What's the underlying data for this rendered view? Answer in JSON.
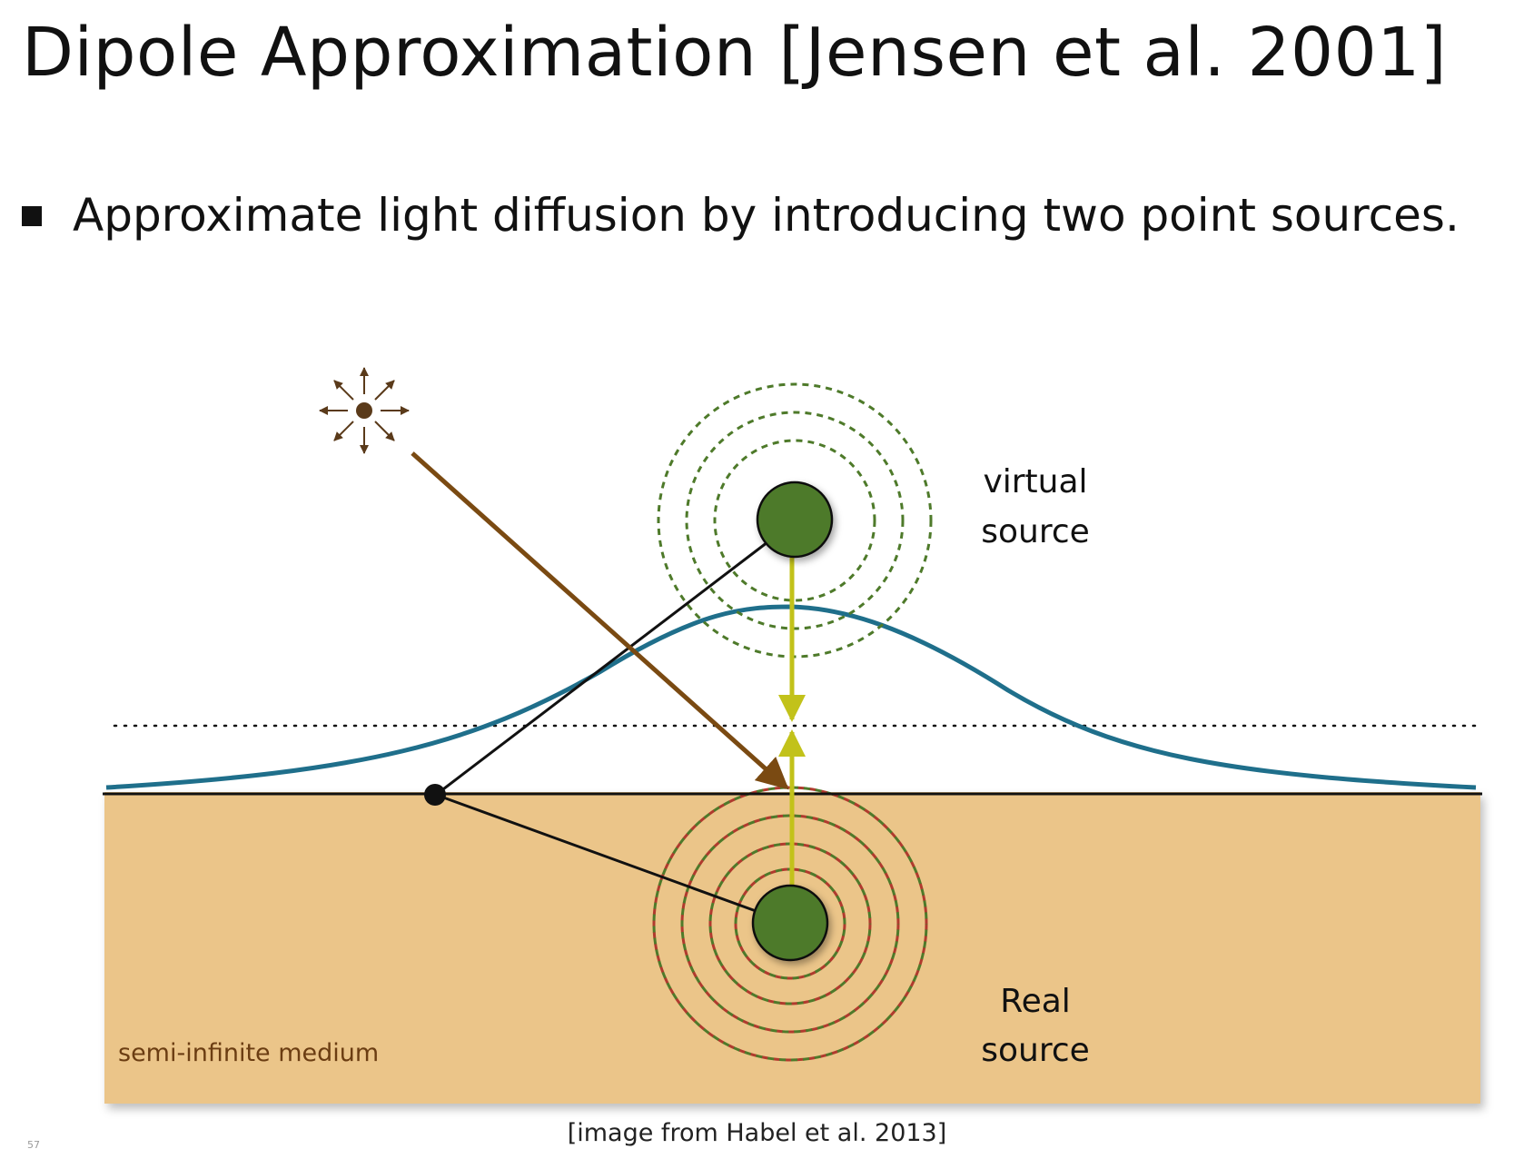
{
  "slide": {
    "title": "Dipole Approximation [Jensen et al. 2001]",
    "bullet": "Approximate light diffusion by introducing two point sources.",
    "caption": "[image from Habel et al. 2013]",
    "page_number": "57"
  },
  "diagram": {
    "labels": {
      "virtual_line1": "virtual",
      "virtual_line2": "source",
      "real_line1": "Real",
      "real_line2": "source",
      "medium": "semi-infinite medium"
    },
    "colors": {
      "medium_fill": "#ebc589",
      "medium_label": "#6b3d12",
      "source_fill": "#4e7a2a",
      "ring_green": "#4e7a2a",
      "ring_red": "#b03a2e",
      "curve": "#1f6f8b",
      "incident_ray": "#7a4a12",
      "dipole_arrow": "#c2c21a",
      "lines": "#111111"
    },
    "icons": [
      "light-source-icon",
      "virtual-source-icon",
      "real-source-icon",
      "entry-point-icon"
    ]
  }
}
